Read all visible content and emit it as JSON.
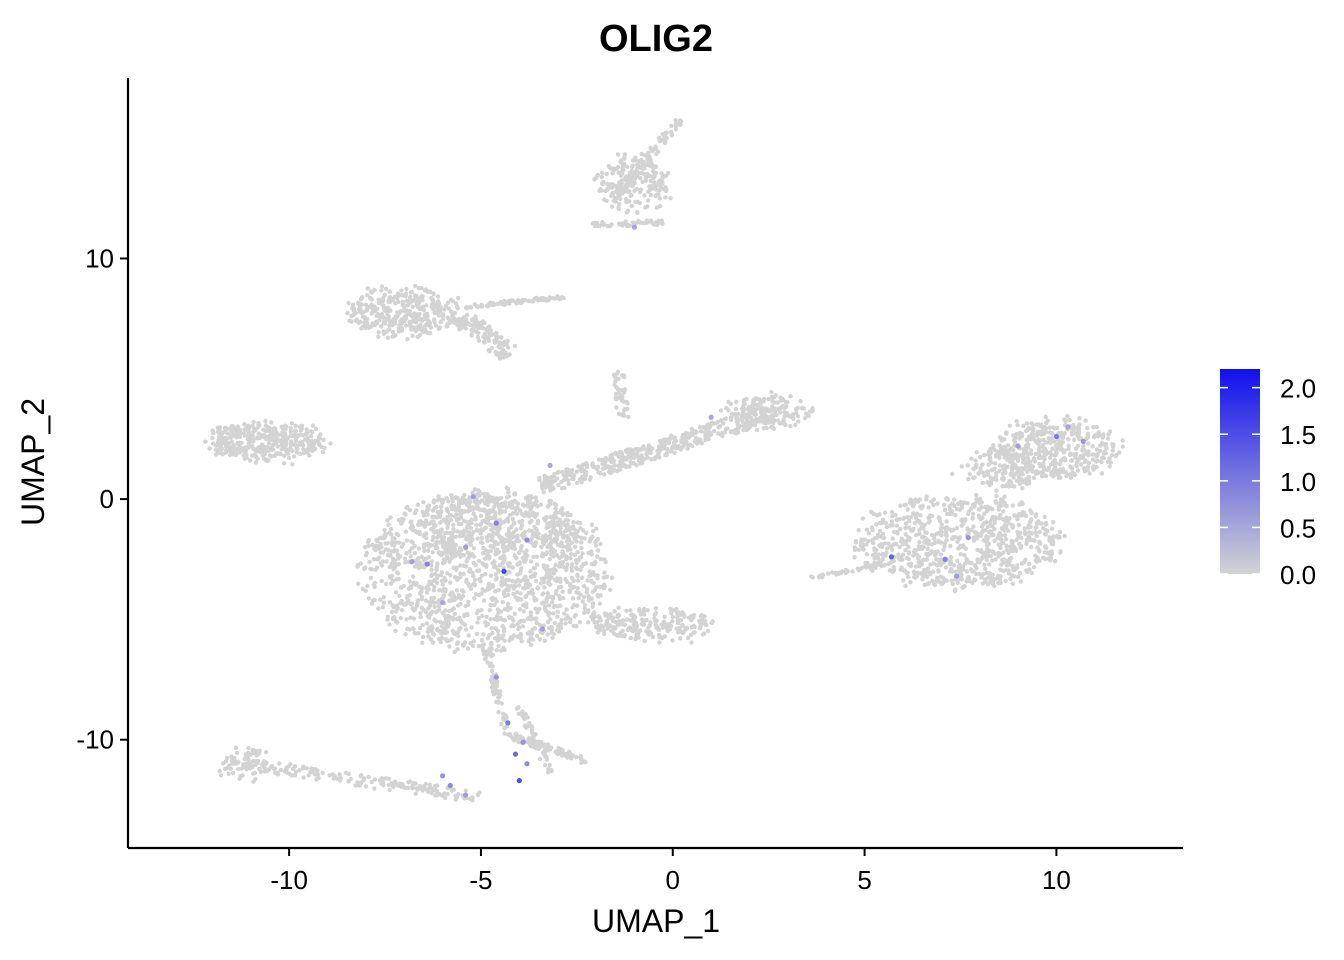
{
  "chart_data": {
    "type": "scatter",
    "title": "OLIG2",
    "xlabel": "UMAP_1",
    "ylabel": "UMAP_2",
    "xlim": [
      -14.2,
      13.3
    ],
    "ylim": [
      -14.5,
      17.5
    ],
    "x_ticks": [
      {
        "value": -10,
        "label": "-10"
      },
      {
        "value": -5,
        "label": "-5"
      },
      {
        "value": 0,
        "label": "0"
      },
      {
        "value": 5,
        "label": "5"
      },
      {
        "value": 10,
        "label": "10"
      }
    ],
    "y_ticks": [
      {
        "value": -10,
        "label": "-10"
      },
      {
        "value": 0,
        "label": "0"
      },
      {
        "value": 10,
        "label": "10"
      }
    ],
    "grid": false,
    "legend": {
      "placement": "right",
      "type": "colorbar",
      "min": 0,
      "max": 2.2,
      "low_color": "#d3d3d3",
      "high_color": "#1010ee",
      "ticks": [
        {
          "value": 0.0,
          "label": "0.0"
        },
        {
          "value": 0.5,
          "label": "0.5"
        },
        {
          "value": 1.0,
          "label": "1.0"
        },
        {
          "value": 1.5,
          "label": "1.5"
        },
        {
          "value": 2.0,
          "label": "2.0"
        }
      ]
    },
    "clusters": [
      {
        "shape": "ellipse",
        "cx": -4.9,
        "cy": -3.0,
        "rx": 3.2,
        "ry": 3.3,
        "n": 1400
      },
      {
        "shape": "ellipse",
        "cx": -4.6,
        "cy": -1.2,
        "rx": 2.1,
        "ry": 1.4,
        "n": 300
      },
      {
        "shape": "ellipse",
        "cx": -10.6,
        "cy": 2.4,
        "rx": 1.6,
        "ry": 0.75,
        "n": 380
      },
      {
        "shape": "ellipse",
        "cx": -7.0,
        "cy": 7.8,
        "rx": 1.4,
        "ry": 1.0,
        "n": 360
      },
      {
        "shape": "ellipse",
        "cx": -1.0,
        "cy": 13.2,
        "rx": 0.9,
        "ry": 1.2,
        "n": 180
      },
      {
        "shape": "ellipse",
        "cx": 7.4,
        "cy": -1.8,
        "rx": 2.7,
        "ry": 1.9,
        "n": 800
      },
      {
        "shape": "ellipse",
        "cx": 10.0,
        "cy": 2.1,
        "rx": 1.6,
        "ry": 1.2,
        "n": 400
      },
      {
        "shape": "ellipse",
        "cx": 8.6,
        "cy": 1.2,
        "rx": 1.0,
        "ry": 0.9,
        "n": 150
      },
      {
        "shape": "ellipse",
        "cx": -0.6,
        "cy": -5.2,
        "rx": 1.6,
        "ry": 0.65,
        "n": 220
      },
      {
        "shape": "ellipse",
        "cx": 2.4,
        "cy": 3.6,
        "rx": 1.1,
        "ry": 0.75,
        "n": 150
      },
      {
        "shape": "ellipse",
        "cx": -11.2,
        "cy": -11.0,
        "rx": 0.55,
        "ry": 0.7,
        "n": 60
      },
      {
        "shape": "segment",
        "x1": -3.5,
        "y1": 0.5,
        "x2": 2.6,
        "y2": 3.6,
        "width": 0.7,
        "n": 420
      },
      {
        "shape": "segment",
        "x1": -5.6,
        "y1": 7.6,
        "x2": -4.2,
        "y2": 6.0,
        "width": 0.7,
        "n": 120
      },
      {
        "shape": "segment",
        "x1": -5.4,
        "y1": 8.0,
        "x2": -2.8,
        "y2": 8.4,
        "width": 0.15,
        "n": 90
      },
      {
        "shape": "segment",
        "x1": -1.6,
        "y1": 12.4,
        "x2": 0.2,
        "y2": 15.8,
        "width": 0.25,
        "n": 90
      },
      {
        "shape": "segment",
        "x1": -2.1,
        "y1": 11.4,
        "x2": -0.2,
        "y2": 11.5,
        "width": 0.2,
        "n": 50
      },
      {
        "shape": "segment",
        "x1": -4.9,
        "y1": -6.0,
        "x2": -4.3,
        "y2": -9.8,
        "width": 0.2,
        "n": 70
      },
      {
        "shape": "segment",
        "x1": -4.3,
        "y1": -9.8,
        "x2": -2.2,
        "y2": -10.9,
        "width": 0.3,
        "n": 80
      },
      {
        "shape": "segment",
        "x1": -4.0,
        "y1": -8.6,
        "x2": -3.2,
        "y2": -11.4,
        "width": 0.2,
        "n": 50
      },
      {
        "shape": "segment",
        "x1": -11.2,
        "y1": -11.0,
        "x2": -5.0,
        "y2": -12.4,
        "width": 0.5,
        "n": 170
      },
      {
        "shape": "segment",
        "x1": -1.4,
        "y1": 5.3,
        "x2": -1.3,
        "y2": 3.4,
        "width": 0.3,
        "n": 40
      },
      {
        "shape": "segment",
        "x1": 3.5,
        "y1": -3.3,
        "x2": 5.6,
        "y2": -2.7,
        "width": 0.12,
        "n": 35
      }
    ],
    "expressing_points": [
      {
        "x": -4.6,
        "y": -1.0,
        "value": 0.9
      },
      {
        "x": -3.8,
        "y": -1.7,
        "value": 0.8
      },
      {
        "x": -4.4,
        "y": -3.0,
        "value": 1.6
      },
      {
        "x": -6.4,
        "y": -2.7,
        "value": 0.9
      },
      {
        "x": -6.8,
        "y": -2.6,
        "value": 0.6
      },
      {
        "x": -5.4,
        "y": -2.0,
        "value": 0.6
      },
      {
        "x": -6.0,
        "y": -4.3,
        "value": 0.5
      },
      {
        "x": -3.4,
        "y": -5.4,
        "value": 0.6
      },
      {
        "x": -5.2,
        "y": 0.1,
        "value": 0.6
      },
      {
        "x": -3.2,
        "y": 1.4,
        "value": 0.5
      },
      {
        "x": -1.0,
        "y": 11.3,
        "value": 0.5
      },
      {
        "x": 5.7,
        "y": -2.4,
        "value": 1.3
      },
      {
        "x": 7.1,
        "y": -2.5,
        "value": 0.9
      },
      {
        "x": 7.7,
        "y": -1.6,
        "value": 0.7
      },
      {
        "x": 7.4,
        "y": -3.2,
        "value": 0.6
      },
      {
        "x": 10.0,
        "y": 2.6,
        "value": 1.0
      },
      {
        "x": 10.7,
        "y": 2.4,
        "value": 0.7
      },
      {
        "x": 9.0,
        "y": 2.2,
        "value": 0.6
      },
      {
        "x": 10.3,
        "y": 3.0,
        "value": 0.5
      },
      {
        "x": 1.0,
        "y": 3.4,
        "value": 0.5
      },
      {
        "x": -4.6,
        "y": -7.4,
        "value": 0.7
      },
      {
        "x": -4.3,
        "y": -9.3,
        "value": 1.0
      },
      {
        "x": -4.1,
        "y": -10.6,
        "value": 1.2
      },
      {
        "x": -3.8,
        "y": -11.0,
        "value": 0.8
      },
      {
        "x": -3.9,
        "y": -10.1,
        "value": 0.7
      },
      {
        "x": -4.0,
        "y": -11.7,
        "value": 1.5
      },
      {
        "x": -6.0,
        "y": -11.5,
        "value": 0.7
      },
      {
        "x": -5.8,
        "y": -11.9,
        "value": 0.8
      },
      {
        "x": -5.4,
        "y": -12.3,
        "value": 0.6
      }
    ]
  }
}
